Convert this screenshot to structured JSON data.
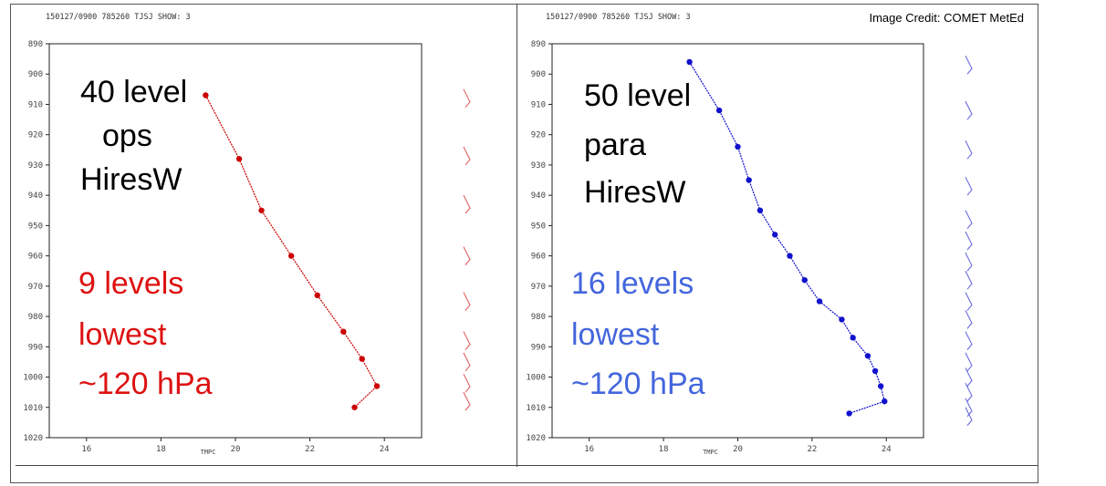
{
  "credit": "Image Credit: COMET MetEd",
  "chart_data": [
    {
      "type": "line",
      "header": "150127/0900 785260 TJSJ   SHOW:    3",
      "xlabel": "TMPC",
      "x_ticks": [
        "16",
        "18",
        "20",
        "22",
        "24"
      ],
      "y_ticks": [
        "890",
        "900",
        "910",
        "920",
        "930",
        "940",
        "950",
        "960",
        "970",
        "980",
        "990",
        "1000",
        "1010",
        "1020"
      ],
      "xlim": [
        15,
        25
      ],
      "ylim": [
        890,
        1020
      ],
      "y_inverted": true,
      "color": "#cc0000",
      "annotation_lines": [
        "40 level",
        "ops",
        "HiresW"
      ],
      "annotation_color": "#000000",
      "levels_lines": [
        "9 levels",
        "lowest",
        "~120 hPa"
      ],
      "levels_color": "#dd1111",
      "barb_color": "#e06060",
      "series": [
        {
          "x": [
            19.2,
            20.1,
            20.7,
            21.5,
            22.2,
            22.9,
            23.4,
            23.8,
            23.2
          ],
          "y": [
            907,
            928,
            945,
            960,
            973,
            985,
            994,
            1003,
            1010
          ]
        }
      ],
      "wind_barb_pressures": [
        908,
        927,
        943,
        960,
        975,
        988,
        995,
        1002,
        1008
      ]
    },
    {
      "type": "line",
      "header": "150127/0900 785260 TJSJ   SHOW:    3",
      "xlabel": "TMPC",
      "x_ticks": [
        "16",
        "18",
        "20",
        "22",
        "24"
      ],
      "y_ticks": [
        "890",
        "900",
        "910",
        "920",
        "930",
        "940",
        "950",
        "960",
        "970",
        "980",
        "990",
        "1000",
        "1010",
        "1020"
      ],
      "xlim": [
        15,
        25
      ],
      "ylim": [
        890,
        1020
      ],
      "y_inverted": true,
      "color": "#1111cc",
      "annotation_lines": [
        "50 level",
        "para",
        "HiresW"
      ],
      "annotation_color": "#000000",
      "levels_lines": [
        "16 levels",
        "lowest",
        "~120 hPa"
      ],
      "levels_color": "#4466dd",
      "barb_color": "#6a6ae0",
      "series": [
        {
          "x": [
            18.7,
            19.5,
            20.0,
            20.3,
            20.6,
            21.0,
            21.4,
            21.8,
            22.2,
            22.8,
            23.1,
            23.5,
            23.7,
            23.85,
            23.95,
            23.0
          ],
          "y": [
            896,
            912,
            924,
            935,
            945,
            953,
            960,
            968,
            975,
            981,
            987,
            993,
            998,
            1003,
            1008,
            1012
          ]
        }
      ],
      "wind_barb_pressures": [
        897,
        912,
        925,
        937,
        948,
        955,
        962,
        968,
        975,
        981,
        988,
        995,
        1000,
        1005,
        1010,
        1013
      ]
    }
  ]
}
